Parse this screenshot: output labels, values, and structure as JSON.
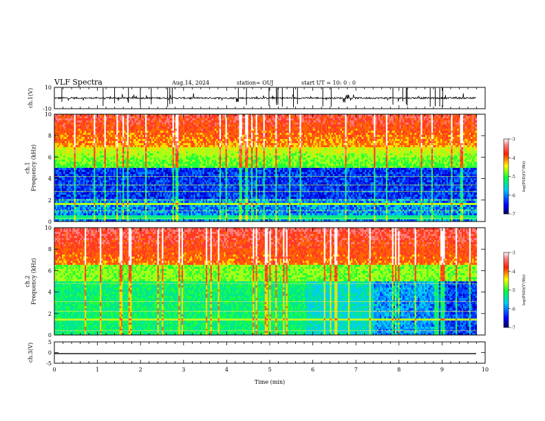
{
  "header": {
    "title": "VLF Spectra",
    "date": "Aug.14, 2024",
    "station": "station= OUJ",
    "start": "start  UT  =   10: 0  : 0"
  },
  "chart_data": [
    {
      "type": "line",
      "name": "ch1-waveform",
      "ylabel": "ch.1(V)",
      "ylim": [
        -10,
        10
      ],
      "yticks": [
        "10",
        "-10"
      ],
      "xlim": [
        0,
        10
      ]
    },
    {
      "type": "heatmap",
      "name": "ch1-spectrogram",
      "ylabel": "ch.1\nFrequency  (kHz)",
      "ylim": [
        0,
        10
      ],
      "yticks": [
        "0",
        "2",
        "4",
        "6",
        "8",
        "10"
      ],
      "xlim": [
        0,
        10
      ],
      "colorbar": {
        "label": "log(PSD)(V²/Hz)",
        "range": [
          -7,
          -3
        ],
        "ticks": [
          "-3",
          "-4",
          "-5",
          "-6",
          "-7"
        ]
      }
    },
    {
      "type": "heatmap",
      "name": "ch2-spectrogram",
      "ylabel": "ch.2\nFrequency  (kHz)",
      "ylim": [
        0,
        10
      ],
      "yticks": [
        "0",
        "2",
        "4",
        "6",
        "8",
        "10"
      ],
      "xlim": [
        0,
        10
      ],
      "colorbar": {
        "label": "log(PSD)(V²/Hz)",
        "range": [
          -7,
          -3
        ],
        "ticks": [
          "-3",
          "-4",
          "-5",
          "-6",
          "-7"
        ]
      }
    },
    {
      "type": "line",
      "name": "ch3-waveform",
      "ylabel": "ch.3(V)",
      "ylim": [
        -5,
        5
      ],
      "yticks": [
        "5",
        "0",
        "-5"
      ],
      "xlim": [
        0,
        10
      ],
      "xlabel": "Time  (min)",
      "xticks": [
        "0",
        "1",
        "2",
        "3",
        "4",
        "5",
        "6",
        "7",
        "8",
        "9",
        "10"
      ],
      "constant_value": -0.5
    }
  ],
  "colors": {
    "colormap": [
      "#000080",
      "#0000ff",
      "#00ffff",
      "#00ff00",
      "#ffff00",
      "#ff0000",
      "#ffffff"
    ]
  }
}
